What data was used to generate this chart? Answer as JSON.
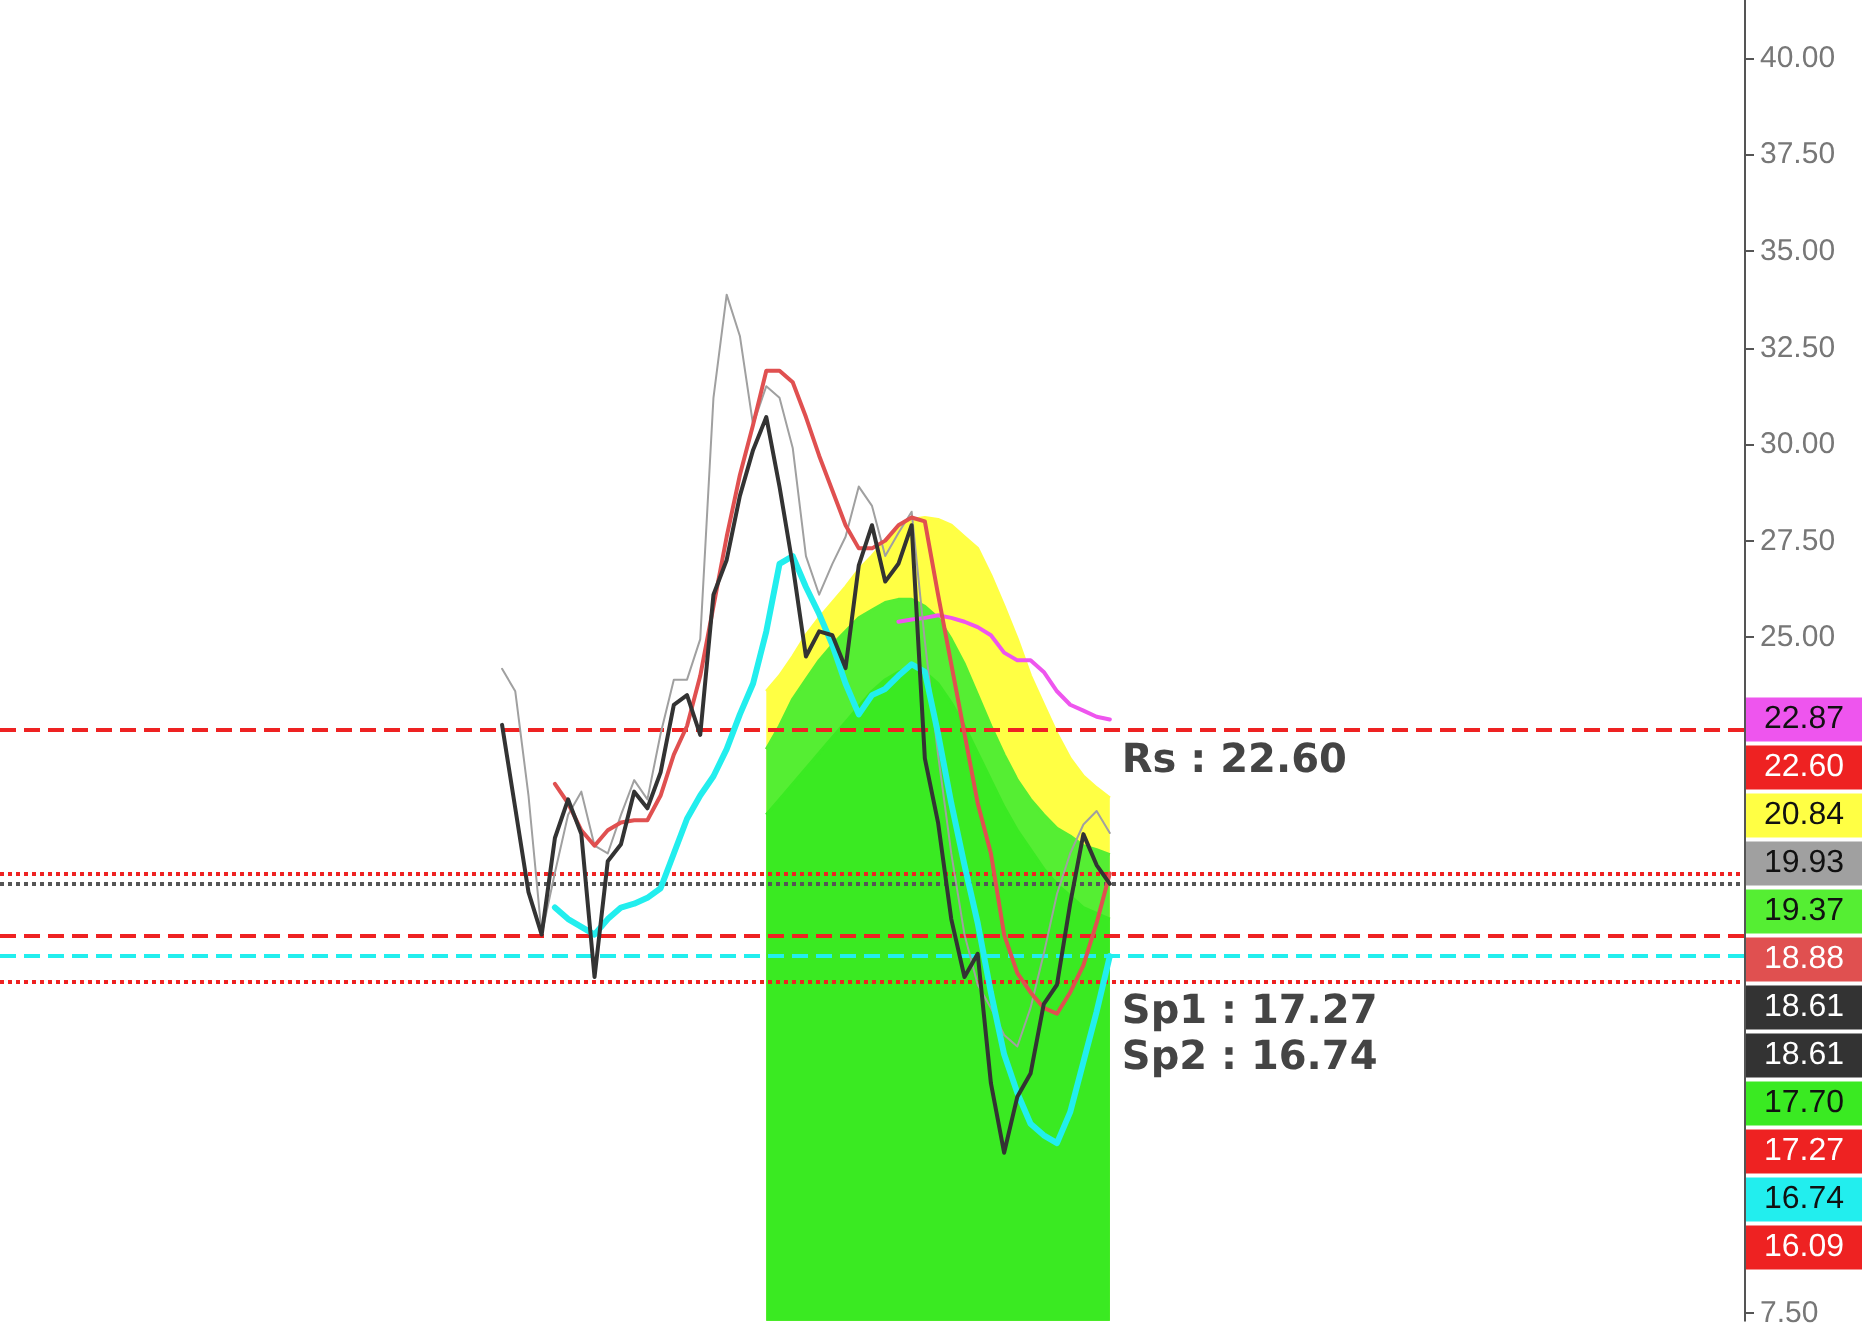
{
  "chart_data": {
    "type": "line",
    "categories": [
      null,
      null,
      null,
      null,
      null,
      null,
      null,
      null,
      null,
      null,
      null,
      null,
      null,
      null,
      null,
      null,
      null,
      null,
      null,
      null,
      null,
      null,
      null,
      null,
      null,
      null,
      null,
      null,
      null,
      null,
      null,
      null,
      null,
      null,
      null,
      null,
      null,
      null,
      null,
      null,
      null,
      null,
      null,
      null,
      null,
      null,
      null,
      null,
      null,
      null,
      null,
      null,
      null,
      null,
      null,
      null,
      null,
      null,
      null,
      null,
      null,
      null,
      null,
      null,
      null,
      null,
      null,
      null,
      null,
      null,
      null,
      null,
      null,
      null,
      null,
      null,
      null,
      null,
      null,
      null,
      null,
      null,
      null,
      null,
      null,
      null,
      null,
      null,
      null,
      null,
      null,
      null,
      null,
      null,
      null,
      null,
      null,
      null,
      null,
      null,
      null,
      null,
      null,
      null,
      null,
      null,
      null,
      null,
      null,
      null,
      null,
      null,
      null,
      null,
      null,
      null,
      null,
      null,
      null,
      null,
      null,
      null,
      null,
      null,
      null,
      null,
      null,
      null,
      null,
      null,
      null,
      null,
      null
    ],
    "series": [
      {
        "type": "area",
        "color": "#ffff44",
        "values": [
          null,
          null,
          null,
          null,
          null,
          null,
          null,
          null,
          null,
          null,
          null,
          null,
          null,
          null,
          null,
          null,
          null,
          null,
          null,
          null,
          null,
          null,
          null,
          null,
          null,
          null,
          null,
          null,
          null,
          null,
          null,
          null,
          null,
          null,
          null,
          null,
          null,
          null,
          null,
          null,
          null,
          null,
          null,
          null,
          null,
          null,
          null,
          null,
          null,
          null,
          null,
          null,
          null,
          null,
          null,
          null,
          null,
          null,
          23.6,
          24.0,
          24.5,
          25.05,
          25.5,
          25.9,
          26.3,
          26.75,
          27.1,
          27.5,
          27.85,
          28.05,
          28.1,
          28.05,
          27.9,
          27.6,
          27.3,
          26.6,
          25.8,
          24.95,
          24.0,
          23.25,
          22.5,
          21.86,
          21.4,
          21.1,
          20.84,
          null,
          null,
          null,
          null,
          null,
          null,
          null,
          null,
          null,
          null,
          null,
          null,
          null,
          null,
          null,
          null,
          null,
          null,
          null,
          null,
          null,
          null,
          null,
          null,
          null,
          null,
          null,
          null,
          null,
          null,
          null,
          null,
          null,
          null,
          null,
          null,
          null,
          null,
          null,
          null,
          null,
          null,
          null,
          null,
          null,
          null,
          null,
          null
        ]
      },
      {
        "type": "area",
        "color": "#55ee33",
        "values": [
          null,
          null,
          null,
          null,
          null,
          null,
          null,
          null,
          null,
          null,
          null,
          null,
          null,
          null,
          null,
          null,
          null,
          null,
          null,
          null,
          null,
          null,
          null,
          null,
          null,
          null,
          null,
          null,
          null,
          null,
          null,
          null,
          null,
          null,
          null,
          null,
          null,
          null,
          null,
          null,
          null,
          null,
          null,
          null,
          null,
          null,
          null,
          null,
          null,
          null,
          null,
          null,
          null,
          null,
          null,
          null,
          null,
          null,
          22.1,
          22.7,
          23.4,
          23.9,
          24.4,
          24.8,
          25.15,
          25.5,
          25.7,
          25.9,
          25.98,
          25.98,
          25.8,
          25.5,
          24.95,
          24.3,
          23.5,
          22.7,
          21.96,
          21.3,
          20.8,
          20.4,
          20.05,
          19.85,
          19.6,
          19.5,
          19.37,
          null,
          null,
          null,
          null,
          null,
          null,
          null,
          null,
          null,
          null,
          null,
          null,
          null,
          null,
          null,
          null,
          null,
          null,
          null,
          null,
          null,
          null,
          null,
          null,
          null,
          null,
          null,
          null,
          null,
          null,
          null,
          null,
          null,
          null,
          null,
          null,
          null,
          null,
          null,
          null,
          null,
          null,
          null,
          null,
          null,
          null,
          null,
          null
        ]
      },
      {
        "type": "area",
        "color": "#3aea22",
        "values": [
          null,
          null,
          null,
          null,
          null,
          null,
          null,
          null,
          null,
          null,
          null,
          null,
          null,
          null,
          null,
          null,
          null,
          null,
          null,
          null,
          null,
          null,
          null,
          null,
          null,
          null,
          null,
          null,
          null,
          null,
          null,
          null,
          null,
          null,
          null,
          null,
          null,
          null,
          null,
          null,
          null,
          null,
          null,
          null,
          null,
          null,
          null,
          null,
          null,
          null,
          null,
          null,
          null,
          null,
          null,
          null,
          null,
          null,
          20.4,
          20.8,
          21.2,
          21.6,
          22.0,
          22.4,
          22.8,
          23.2,
          23.6,
          23.9,
          24.1,
          24.2,
          24.1,
          23.8,
          23.3,
          22.7,
          22.0,
          21.3,
          20.6,
          20.0,
          19.5,
          19.0,
          18.6,
          18.3,
          18.0,
          17.85,
          17.7,
          null,
          null,
          null,
          null,
          null,
          null,
          null,
          null,
          null,
          null,
          null,
          null,
          null,
          null,
          null,
          null,
          null,
          null,
          null,
          null,
          null,
          null,
          null,
          null,
          null,
          null,
          null,
          null,
          null,
          null,
          null,
          null,
          null,
          null,
          null,
          null,
          null,
          null,
          null,
          null,
          null,
          null,
          null,
          null,
          null,
          null,
          null,
          null
        ]
      },
      {
        "color": "#ee55ee",
        "values": [
          null,
          null,
          null,
          null,
          null,
          null,
          null,
          null,
          null,
          null,
          null,
          null,
          null,
          null,
          null,
          null,
          null,
          null,
          null,
          null,
          null,
          null,
          null,
          null,
          null,
          null,
          null,
          null,
          null,
          null,
          null,
          null,
          null,
          null,
          null,
          null,
          null,
          null,
          null,
          null,
          null,
          null,
          null,
          null,
          null,
          null,
          null,
          null,
          null,
          null,
          null,
          null,
          null,
          null,
          null,
          null,
          null,
          null,
          null,
          null,
          null,
          null,
          null,
          null,
          null,
          null,
          null,
          null,
          25.4,
          25.46,
          25.5,
          25.57,
          25.5,
          25.4,
          25.26,
          25.05,
          24.6,
          24.4,
          24.4,
          24.1,
          23.6,
          23.25,
          23.1,
          22.94,
          22.87,
          null,
          null,
          null,
          null,
          null,
          null,
          null,
          null,
          null,
          null,
          null,
          null,
          null,
          null,
          null,
          null,
          null,
          null,
          null,
          null,
          null,
          null,
          null,
          null,
          null,
          null,
          null,
          null,
          null,
          null,
          null,
          null,
          null,
          null,
          null,
          null,
          null,
          null,
          null,
          null,
          null,
          null,
          null,
          null,
          null,
          null,
          null,
          null
        ]
      },
      {
        "color": "#a0a0a0",
        "values": [
          null,
          null,
          null,
          null,
          null,
          null,
          null,
          null,
          null,
          null,
          null,
          null,
          null,
          null,
          null,
          null,
          null,
          null,
          null,
          null,
          null,
          null,
          null,
          null,
          null,
          null,
          null,
          null,
          null,
          null,
          null,
          null,
          null,
          null,
          null,
          null,
          null,
          null,
          24.18,
          23.6,
          20.9,
          17.3,
          18.9,
          20.4,
          21.0,
          19.6,
          19.4,
          20.4,
          21.3,
          20.8,
          22.5,
          23.9,
          23.9,
          24.95,
          31.2,
          33.87,
          32.8,
          30.5,
          31.5,
          31.2,
          29.9,
          27.1,
          26.1,
          26.9,
          27.6,
          28.9,
          28.4,
          27.1,
          27.7,
          28.25,
          24.9,
          21.96,
          19.4,
          17.3,
          16.0,
          15.4,
          14.7,
          14.4,
          15.4,
          16.8,
          18.35,
          19.4,
          20.15,
          20.5,
          19.93,
          null,
          null,
          null,
          null,
          null,
          null,
          null,
          null,
          null,
          null,
          null,
          null,
          null,
          null,
          null,
          null,
          null,
          null,
          null,
          null,
          null,
          null,
          null,
          null,
          null,
          null,
          null,
          null,
          null,
          null,
          null,
          null,
          null,
          null,
          null,
          null,
          null,
          null,
          null,
          null,
          null,
          null,
          null,
          null,
          null,
          null,
          null,
          null
        ]
      },
      {
        "color": "#e05050",
        "values": [
          null,
          null,
          null,
          null,
          null,
          null,
          null,
          null,
          null,
          null,
          null,
          null,
          null,
          null,
          null,
          null,
          null,
          null,
          null,
          null,
          null,
          null,
          null,
          null,
          null,
          null,
          null,
          null,
          null,
          null,
          null,
          null,
          null,
          null,
          null,
          null,
          null,
          null,
          null,
          null,
          null,
          null,
          21.2,
          20.7,
          20.0,
          19.6,
          20.0,
          20.2,
          20.26,
          20.26,
          20.9,
          21.96,
          22.7,
          24.0,
          25.8,
          27.6,
          29.2,
          30.5,
          31.9,
          31.9,
          31.6,
          30.7,
          29.7,
          28.8,
          27.9,
          27.3,
          27.3,
          27.5,
          27.9,
          28.1,
          28.0,
          26.1,
          24.3,
          22.5,
          20.7,
          19.4,
          17.3,
          16.3,
          15.8,
          15.4,
          15.25,
          15.8,
          16.5,
          17.6,
          18.88,
          null,
          null,
          null,
          null,
          null,
          null,
          null,
          null,
          null,
          null,
          null,
          null,
          null,
          null,
          null,
          null,
          null,
          null,
          null,
          null,
          null,
          null,
          null,
          null,
          null,
          null,
          null,
          null,
          null,
          null,
          null,
          null,
          null,
          null,
          null,
          null,
          null,
          null,
          null,
          null,
          null,
          null,
          null,
          null,
          null,
          null,
          null,
          null
        ]
      },
      {
        "color": "#22eeee",
        "values": [
          null,
          null,
          null,
          null,
          null,
          null,
          null,
          null,
          null,
          null,
          null,
          null,
          null,
          null,
          null,
          null,
          null,
          null,
          null,
          null,
          null,
          null,
          null,
          null,
          null,
          null,
          null,
          null,
          null,
          null,
          null,
          null,
          null,
          null,
          null,
          null,
          null,
          null,
          null,
          null,
          null,
          null,
          18.0,
          17.7,
          17.5,
          17.3,
          17.7,
          18.0,
          18.1,
          18.25,
          18.5,
          19.4,
          20.3,
          20.9,
          21.4,
          22.1,
          23.0,
          23.8,
          25.15,
          26.9,
          27.1,
          26.3,
          25.6,
          24.8,
          23.8,
          23.0,
          23.5,
          23.66,
          24.0,
          24.3,
          24.1,
          22.5,
          20.7,
          19.1,
          17.6,
          15.8,
          14.2,
          13.2,
          12.4,
          12.1,
          11.9,
          12.7,
          14.0,
          15.3,
          16.74,
          null,
          null,
          null,
          null,
          null,
          null,
          null,
          null,
          null,
          null,
          null,
          null,
          null,
          null,
          null,
          null,
          null,
          null,
          null,
          null,
          null,
          null,
          null,
          null,
          null,
          null,
          null,
          null,
          null,
          null,
          null,
          null,
          null,
          null,
          null,
          null,
          null,
          null,
          null,
          null,
          null,
          null,
          null,
          null,
          null,
          null,
          null,
          null
        ]
      },
      {
        "color": "#333333",
        "values": [
          null,
          null,
          null,
          null,
          null,
          null,
          null,
          null,
          null,
          null,
          null,
          null,
          null,
          null,
          null,
          null,
          null,
          null,
          null,
          null,
          null,
          null,
          null,
          null,
          null,
          null,
          null,
          null,
          null,
          null,
          null,
          null,
          null,
          null,
          null,
          null,
          null,
          null,
          22.73,
          20.57,
          18.4,
          17.3,
          19.8,
          20.8,
          19.9,
          16.2,
          19.2,
          19.64,
          21.0,
          20.57,
          21.5,
          23.25,
          23.5,
          22.47,
          26.1,
          27.0,
          28.66,
          29.85,
          30.7,
          28.9,
          26.86,
          24.5,
          25.15,
          25.05,
          24.2,
          26.86,
          27.9,
          26.44,
          26.9,
          27.9,
          21.86,
          20.2,
          17.7,
          16.2,
          16.8,
          13.45,
          11.65,
          13.1,
          13.7,
          15.5,
          16.0,
          18.1,
          19.9,
          19.1,
          18.61,
          null,
          null,
          null,
          null,
          null,
          null,
          null,
          null,
          null,
          null,
          null,
          null,
          null,
          null,
          null,
          null,
          null,
          null,
          null,
          null,
          null,
          null,
          null,
          null,
          null,
          null,
          null,
          null,
          null,
          null,
          null,
          null,
          null,
          null,
          null,
          null,
          null,
          null,
          null,
          null,
          null,
          null,
          null,
          null,
          null,
          null,
          null,
          null
        ]
      }
    ],
    "ylim": [
      7.3,
      41.5
    ],
    "yticks": [
      {
        "value": 7.5,
        "label": "7.50"
      },
      {
        "value": 10,
        "label": null
      },
      {
        "value": 12.5,
        "label": null
      },
      {
        "value": 15,
        "label": null
      },
      {
        "value": 17.5,
        "label": null
      },
      {
        "value": 20,
        "label": null
      },
      {
        "value": 22.5,
        "label": null
      },
      {
        "value": 25,
        "label": "25.00"
      },
      {
        "value": 27.5,
        "label": "27.50"
      },
      {
        "value": 30,
        "label": "30.00"
      },
      {
        "value": 32.5,
        "label": "32.50"
      },
      {
        "value": 35,
        "label": "35.00"
      },
      {
        "value": 37.5,
        "label": "37.50"
      },
      {
        "value": 40,
        "label": "40.00"
      }
    ],
    "tick_labels": "y",
    "line_style": "solid",
    "ref_lines": [
      {
        "axis": "y",
        "value": 22.6,
        "label": "Rs : 22.60",
        "color": "#ee2222",
        "line_style": "dashed"
      },
      {
        "axis": "y",
        "value": 18.88,
        "color": "#ee2222",
        "line_style": "dotted"
      },
      {
        "axis": "y",
        "value": 18.61,
        "color": "#555555",
        "line_style": "dotted"
      },
      {
        "axis": "y",
        "value": 17.27,
        "label": "Sp1 : 17.27",
        "color": "#ee2222",
        "line_style": "dashed"
      },
      {
        "axis": "y",
        "value": 16.74,
        "label": "Sp2 : 16.74",
        "color": "#22eeee",
        "line_style": "dashed"
      },
      {
        "axis": "y",
        "value": 16.09,
        "color": "#ee2222",
        "line_style": "dotted"
      }
    ],
    "annotations": [
      "22.87",
      "22.60",
      "20.84",
      "19.93",
      "19.37",
      "18.88",
      "18.61",
      "18.61",
      "17.70",
      "17.27",
      "16.74",
      "16.09"
    ]
  }
}
